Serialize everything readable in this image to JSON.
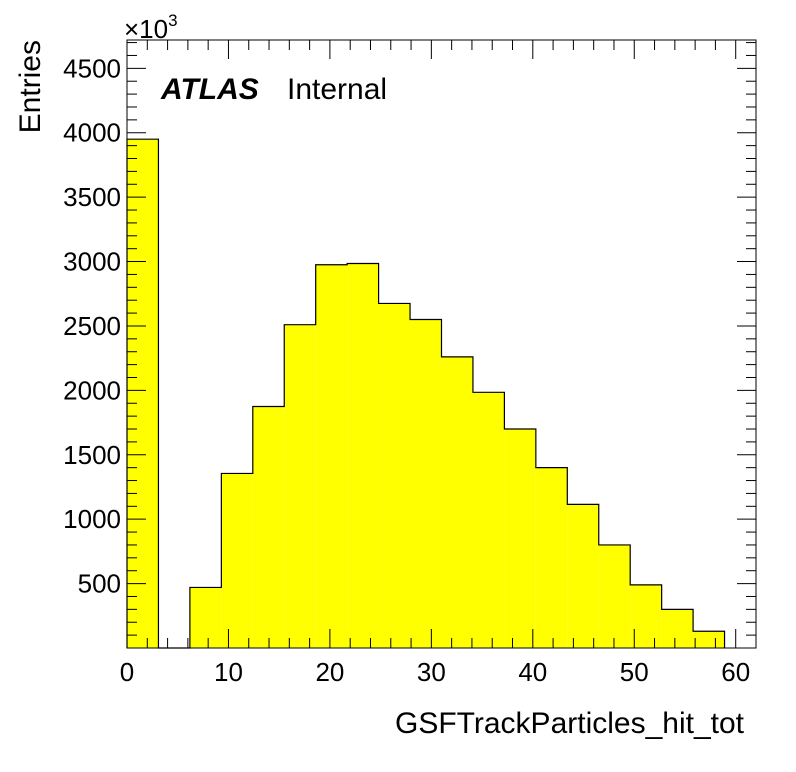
{
  "chart_data": {
    "type": "bar",
    "xlabel": "GSFTrackParticles_hit_tot",
    "ylabel": "Entries",
    "y_multiplier_label": "×10",
    "y_multiplier_exp": "3",
    "xlim": [
      0,
      62
    ],
    "ylim": [
      0,
      4720
    ],
    "x_ticks": [
      0,
      10,
      20,
      30,
      40,
      50,
      60
    ],
    "y_ticks": [
      500,
      1000,
      1500,
      2000,
      2500,
      3000,
      3500,
      4000,
      4500
    ],
    "bin_edges": [
      0,
      3.1,
      6.2,
      9.3,
      12.4,
      15.5,
      18.6,
      21.7,
      24.8,
      27.9,
      31.0,
      34.1,
      37.2,
      40.3,
      43.4,
      46.5,
      49.6,
      52.7,
      55.8,
      58.9
    ],
    "values": [
      3950,
      0,
      470,
      1355,
      1875,
      2510,
      2975,
      2985,
      2675,
      2550,
      2260,
      1985,
      1700,
      1400,
      1115,
      800,
      490,
      300,
      130
    ],
    "fill_color": "#ffff00",
    "grid": false,
    "legend": "none"
  },
  "annotation": {
    "bold": "ATLAS",
    "normal": "Internal"
  }
}
